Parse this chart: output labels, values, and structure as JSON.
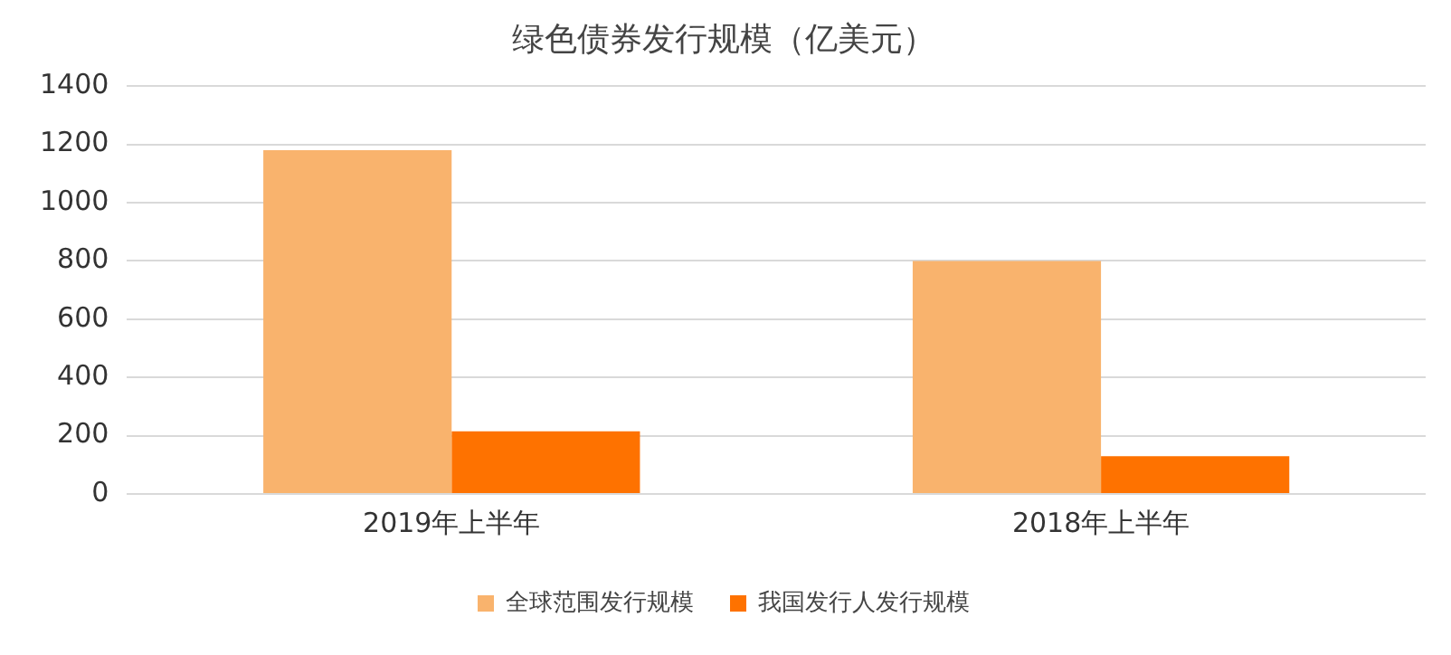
{
  "chart_data": {
    "type": "bar",
    "title": "绿色债券发行规模（亿美元）",
    "categories": [
      "2019年上半年",
      "2018年上半年"
    ],
    "series": [
      {
        "name": "全球范围发行规模",
        "color": "#f9b36d",
        "values": [
          1180,
          800
        ]
      },
      {
        "name": "我国发行人发行规模",
        "color": "#fe7200",
        "values": [
          215,
          130
        ]
      }
    ],
    "ylim": [
      0,
      1400
    ],
    "yticks": [
      0,
      200,
      400,
      600,
      800,
      1000,
      1200,
      1400
    ],
    "grid": "y",
    "legend": "bottom"
  }
}
